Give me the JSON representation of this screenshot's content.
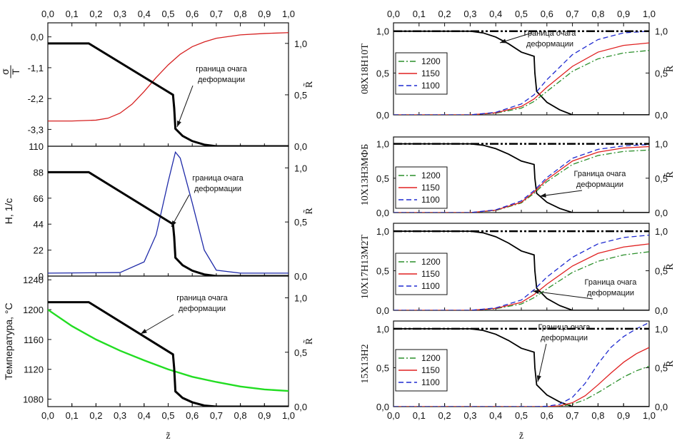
{
  "chart_data": [
    {
      "type": "line",
      "panel": "left-top",
      "ylabel_left": "σ/T",
      "ylabel_right": "R̃",
      "xlim": [
        0,
        1
      ],
      "ylim_left": [
        -3.9,
        0.5
      ],
      "yticks_left": [
        "0,0",
        "-1,1",
        "-2,2",
        "-3,3"
      ],
      "ylim_right": [
        0,
        1.2
      ],
      "yticks_right": [
        "0,0",
        "0,5",
        "1,0"
      ],
      "annotation": [
        "граница очага",
        "деформации"
      ],
      "series": [
        {
          "name": "σ/T",
          "color": "#d62020",
          "x": [
            0,
            0.1,
            0.2,
            0.25,
            0.3,
            0.35,
            0.4,
            0.45,
            0.5,
            0.55,
            0.6,
            0.65,
            0.7,
            0.8,
            0.9,
            1.0
          ],
          "y": [
            -3.0,
            -3.0,
            -2.97,
            -2.9,
            -2.72,
            -2.4,
            -1.95,
            -1.45,
            -1.0,
            -0.62,
            -0.35,
            -0.18,
            -0.05,
            0.07,
            0.12,
            0.15
          ]
        },
        {
          "name": "R̃",
          "color": "#000000",
          "axis": "right",
          "x": [
            0,
            0.17,
            0.52,
            0.525,
            0.53,
            0.56,
            0.6,
            0.65,
            0.7,
            1.0
          ],
          "y": [
            1.0,
            1.0,
            0.5,
            0.37,
            0.17,
            0.1,
            0.05,
            0.015,
            0.0,
            0.0
          ]
        }
      ]
    },
    {
      "type": "line",
      "panel": "left-middle",
      "ylabel_left": "H, 1/c",
      "ylabel_right": "R̃",
      "xlim": [
        0,
        1
      ],
      "ylim_left": [
        0,
        110
      ],
      "yticks_left": [
        "0",
        "22",
        "44",
        "66",
        "88",
        "110"
      ],
      "ylim_right": [
        0,
        1.2
      ],
      "yticks_right": [
        "0,0",
        "0,5",
        "1,0"
      ],
      "annotation": [
        "граница очага",
        "деформации"
      ],
      "series": [
        {
          "name": "H",
          "color": "#1e2aa8",
          "x": [
            0,
            0.3,
            0.4,
            0.45,
            0.5,
            0.53,
            0.55,
            0.6,
            0.65,
            0.7,
            0.8,
            1.0
          ],
          "y": [
            2.5,
            3,
            12,
            35,
            80,
            105,
            100,
            62,
            22,
            5,
            2.5,
            2.5
          ]
        },
        {
          "name": "R̃",
          "color": "#000000",
          "axis": "right",
          "x": [
            0,
            0.17,
            0.52,
            0.525,
            0.53,
            0.56,
            0.6,
            0.65,
            0.7,
            1.0
          ],
          "y": [
            0.96,
            0.96,
            0.48,
            0.36,
            0.17,
            0.1,
            0.05,
            0.015,
            0.0,
            0.0
          ]
        }
      ]
    },
    {
      "type": "line",
      "panel": "left-bottom",
      "ylabel_left": "Температура, °C",
      "ylabel_right": "R̃",
      "xlabel": "z̃",
      "xlim": [
        0,
        1
      ],
      "xticks": [
        "0,0",
        "0,1",
        "0,2",
        "0,3",
        "0,4",
        "0,5",
        "0,6",
        "0,7",
        "0,8",
        "0,9",
        "1,0"
      ],
      "ylim_left": [
        1070,
        1245
      ],
      "yticks_left": [
        "1080",
        "1120",
        "1160",
        "1200",
        "1240"
      ],
      "ylim_right": [
        0,
        1.2
      ],
      "yticks_right": [
        "0,0",
        "0,5",
        "1,0"
      ],
      "annotation": [
        "граница очага",
        "деформации"
      ],
      "series": [
        {
          "name": "Температура",
          "color": "#22dd22",
          "x": [
            0,
            0.1,
            0.2,
            0.3,
            0.4,
            0.5,
            0.6,
            0.7,
            0.8,
            0.9,
            1.0
          ],
          "y": [
            1200,
            1178,
            1160,
            1145,
            1132,
            1120,
            1110,
            1103,
            1097,
            1093,
            1091
          ]
        },
        {
          "name": "R̃",
          "color": "#000000",
          "axis": "right",
          "x": [
            0,
            0.17,
            0.52,
            0.525,
            0.53,
            0.56,
            0.6,
            0.65,
            0.7,
            1.0
          ],
          "y": [
            0.96,
            0.96,
            0.48,
            0.35,
            0.14,
            0.08,
            0.04,
            0.01,
            0.0,
            0.0
          ]
        }
      ]
    },
    {
      "type": "line",
      "panel": "right-1",
      "ylabel_left": "08Х18Н10Т",
      "ylabel_right": "R̃",
      "xlim": [
        0,
        1
      ],
      "xticks": [
        "0,0",
        "0,1",
        "0,2",
        "0,3",
        "0,4",
        "0,5",
        "0,6",
        "0,7",
        "0,8",
        "0,9",
        "1,0"
      ],
      "ylim": [
        0,
        1.1
      ],
      "yticks": [
        "0,0",
        "0,5",
        "1,0"
      ],
      "annotation": [
        "Граница очага",
        "деформации"
      ],
      "legend": [
        "1200",
        "1150",
        "1100"
      ],
      "series": [
        {
          "name": "R̃",
          "color": "#000000",
          "x": [
            0,
            0.3,
            0.35,
            0.4,
            0.45,
            0.5,
            0.55,
            0.553,
            0.56,
            0.6,
            0.65,
            0.7,
            1.0
          ],
          "y": [
            1.0,
            1.0,
            0.98,
            0.93,
            0.85,
            0.75,
            0.7,
            0.5,
            0.28,
            0.15,
            0.06,
            0.0,
            0.0
          ]
        },
        {
          "name": "1200",
          "color": "#2a8f2a",
          "x": [
            0,
            0.3,
            0.4,
            0.5,
            0.55,
            0.6,
            0.7,
            0.8,
            0.9,
            1.0
          ],
          "y": [
            0,
            0.0,
            0.02,
            0.08,
            0.16,
            0.28,
            0.52,
            0.67,
            0.74,
            0.77
          ]
        },
        {
          "name": "1150",
          "color": "#e02020",
          "x": [
            0,
            0.3,
            0.4,
            0.5,
            0.55,
            0.6,
            0.7,
            0.8,
            0.9,
            1.0
          ],
          "y": [
            0,
            0.0,
            0.025,
            0.1,
            0.19,
            0.33,
            0.58,
            0.75,
            0.83,
            0.86
          ]
        },
        {
          "name": "1100",
          "color": "#1e2ad0",
          "x": [
            0,
            0.3,
            0.4,
            0.5,
            0.55,
            0.6,
            0.7,
            0.8,
            0.9,
            1.0
          ],
          "y": [
            0,
            0.0,
            0.03,
            0.13,
            0.24,
            0.42,
            0.72,
            0.9,
            0.98,
            1.0
          ]
        },
        {
          "name": "границa",
          "color": "#000000",
          "x": [
            0,
            1
          ],
          "y": [
            1.0,
            1.0
          ]
        }
      ]
    },
    {
      "type": "line",
      "panel": "right-2",
      "ylabel_left": "10Х13Н3МФБ",
      "ylabel_right": "R̃",
      "xlim": [
        0,
        1
      ],
      "ylim": [
        0,
        1.1
      ],
      "yticks": [
        "0,0",
        "0,5",
        "1,0"
      ],
      "annotation": [
        "Граница очага",
        "деформации"
      ],
      "legend": [
        "1200",
        "1150",
        "1100"
      ],
      "series": [
        {
          "name": "R̃",
          "color": "#000000",
          "x": [
            0,
            0.3,
            0.35,
            0.4,
            0.45,
            0.5,
            0.55,
            0.553,
            0.56,
            0.6,
            0.65,
            0.7,
            1.0
          ],
          "y": [
            1.0,
            1.0,
            0.98,
            0.93,
            0.85,
            0.75,
            0.7,
            0.5,
            0.28,
            0.15,
            0.06,
            0.0,
            0.0
          ]
        },
        {
          "name": "1200",
          "color": "#2a8f2a",
          "x": [
            0,
            0.3,
            0.4,
            0.5,
            0.55,
            0.6,
            0.7,
            0.8,
            0.9,
            1.0
          ],
          "y": [
            0,
            0.0,
            0.03,
            0.14,
            0.28,
            0.45,
            0.7,
            0.83,
            0.89,
            0.91
          ]
        },
        {
          "name": "1150",
          "color": "#e02020",
          "x": [
            0,
            0.3,
            0.4,
            0.5,
            0.55,
            0.6,
            0.7,
            0.8,
            0.9,
            1.0
          ],
          "y": [
            0,
            0.0,
            0.035,
            0.15,
            0.3,
            0.48,
            0.75,
            0.88,
            0.94,
            0.96
          ]
        },
        {
          "name": "1100",
          "color": "#1e2ad0",
          "x": [
            0,
            0.3,
            0.4,
            0.5,
            0.55,
            0.6,
            0.7,
            0.8,
            0.9,
            1.0
          ],
          "y": [
            0,
            0.0,
            0.04,
            0.17,
            0.32,
            0.51,
            0.79,
            0.92,
            0.97,
            0.99
          ]
        },
        {
          "name": "границa",
          "color": "#000000",
          "x": [
            0,
            1
          ],
          "y": [
            1.0,
            1.0
          ]
        }
      ]
    },
    {
      "type": "line",
      "panel": "right-3",
      "ylabel_left": "10Х17Н13М2Т",
      "ylabel_right": "R̃",
      "xlim": [
        0,
        1
      ],
      "ylim": [
        0,
        1.1
      ],
      "yticks": [
        "0,0",
        "0,5",
        "1,0"
      ],
      "annotation": [
        "Граница очага",
        "деформации"
      ],
      "legend": [
        "1200",
        "1150",
        "1100"
      ],
      "series": [
        {
          "name": "R̃",
          "color": "#000000",
          "x": [
            0,
            0.3,
            0.35,
            0.4,
            0.45,
            0.5,
            0.55,
            0.553,
            0.56,
            0.6,
            0.65,
            0.7,
            1.0
          ],
          "y": [
            1.0,
            1.0,
            0.98,
            0.93,
            0.85,
            0.75,
            0.7,
            0.5,
            0.28,
            0.15,
            0.06,
            0.0,
            0.0
          ]
        },
        {
          "name": "1200",
          "color": "#2a8f2a",
          "x": [
            0,
            0.3,
            0.4,
            0.5,
            0.55,
            0.6,
            0.7,
            0.8,
            0.9,
            1.0
          ],
          "y": [
            0,
            0.0,
            0.02,
            0.08,
            0.16,
            0.27,
            0.48,
            0.62,
            0.7,
            0.74
          ]
        },
        {
          "name": "1150",
          "color": "#e02020",
          "x": [
            0,
            0.3,
            0.4,
            0.5,
            0.55,
            0.6,
            0.7,
            0.8,
            0.9,
            1.0
          ],
          "y": [
            0,
            0.0,
            0.025,
            0.1,
            0.2,
            0.33,
            0.56,
            0.72,
            0.8,
            0.84
          ]
        },
        {
          "name": "1100",
          "color": "#1e2ad0",
          "x": [
            0,
            0.3,
            0.4,
            0.5,
            0.55,
            0.6,
            0.7,
            0.8,
            0.9,
            1.0
          ],
          "y": [
            0,
            0.0,
            0.03,
            0.13,
            0.26,
            0.42,
            0.67,
            0.84,
            0.92,
            0.95
          ]
        },
        {
          "name": "границa",
          "color": "#000000",
          "x": [
            0,
            1
          ],
          "y": [
            1.0,
            1.0
          ]
        }
      ]
    },
    {
      "type": "line",
      "panel": "right-4",
      "ylabel_left": "15Х13Н2",
      "ylabel_right": "R̃",
      "xlabel": "z̃",
      "xlim": [
        0,
        1
      ],
      "xticks": [
        "0,0",
        "0,1",
        "0,2",
        "0,3",
        "0,4",
        "0,5",
        "0,6",
        "0,7",
        "0,8",
        "0,9",
        "1,0"
      ],
      "ylim": [
        0,
        1.1
      ],
      "yticks": [
        "0,0",
        "0,5",
        "1,0"
      ],
      "annotation": [
        "Граница очага",
        "деформации"
      ],
      "legend": [
        "1200",
        "1150",
        "1100"
      ],
      "series": [
        {
          "name": "R̃",
          "color": "#000000",
          "x": [
            0,
            0.3,
            0.35,
            0.4,
            0.45,
            0.5,
            0.55,
            0.553,
            0.56,
            0.6,
            0.65,
            0.7,
            1.0
          ],
          "y": [
            1.0,
            1.0,
            0.98,
            0.93,
            0.85,
            0.75,
            0.7,
            0.5,
            0.28,
            0.15,
            0.06,
            0.0,
            0.0
          ]
        },
        {
          "name": "1200",
          "color": "#2a8f2a",
          "x": [
            0,
            0.55,
            0.6,
            0.65,
            0.7,
            0.75,
            0.8,
            0.85,
            0.9,
            0.95,
            1.0
          ],
          "y": [
            0,
            0.0,
            0.0,
            0.005,
            0.03,
            0.09,
            0.18,
            0.28,
            0.38,
            0.46,
            0.52
          ]
        },
        {
          "name": "1150",
          "color": "#e02020",
          "x": [
            0,
            0.55,
            0.6,
            0.65,
            0.7,
            0.75,
            0.8,
            0.85,
            0.9,
            0.95,
            1.0
          ],
          "y": [
            0,
            0.0,
            0.0,
            0.01,
            0.05,
            0.14,
            0.28,
            0.43,
            0.57,
            0.68,
            0.76
          ]
        },
        {
          "name": "1100",
          "color": "#1e2ad0",
          "x": [
            0,
            0.55,
            0.6,
            0.65,
            0.7,
            0.75,
            0.8,
            0.85,
            0.9,
            0.95,
            1.0
          ],
          "y": [
            0,
            0.0,
            0.005,
            0.03,
            0.12,
            0.3,
            0.55,
            0.76,
            0.9,
            1.0,
            1.08
          ]
        },
        {
          "name": "границa",
          "color": "#000000",
          "x": [
            0,
            1
          ],
          "y": [
            1.0,
            1.0
          ]
        }
      ]
    }
  ]
}
